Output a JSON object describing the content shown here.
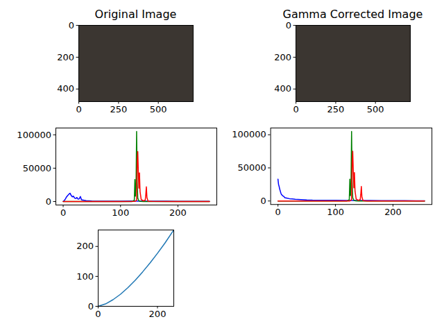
{
  "chart_data": [
    {
      "type": "image",
      "title": "Original Image",
      "xlim": [
        -0.5,
        719.5
      ],
      "ylim": [
        479.5,
        -0.5
      ],
      "xticks": [
        0,
        250,
        500
      ],
      "yticks": [
        0,
        200,
        400
      ]
    },
    {
      "type": "image",
      "title": "Gamma Corrected Image",
      "xlim": [
        -0.5,
        719.5
      ],
      "ylim": [
        479.5,
        -0.5
      ],
      "xticks": [
        0,
        250,
        500
      ],
      "yticks": [
        0,
        200,
        400
      ]
    },
    {
      "type": "line",
      "xlim": [
        -12.75,
        267.75
      ],
      "ylim": [
        -5250,
        110250
      ],
      "xticks": [
        0,
        100,
        200
      ],
      "yticks": [
        0,
        50000,
        100000
      ],
      "series": [
        {
          "color": "#0000ff",
          "x": [
            0,
            2,
            4,
            6,
            8,
            10,
            12,
            14,
            16,
            18,
            20,
            22,
            24,
            26,
            28,
            30,
            32,
            35,
            40,
            50,
            60,
            80,
            100,
            120,
            140,
            160,
            180,
            200,
            220,
            240,
            255
          ],
          "values": [
            200,
            1500,
            4000,
            7000,
            9000,
            11000,
            12500,
            9000,
            7000,
            8000,
            5000,
            4500,
            6000,
            3500,
            4000,
            7500,
            2500,
            2000,
            1200,
            800,
            600,
            500,
            600,
            700,
            600,
            500,
            400,
            300,
            300,
            200,
            100
          ]
        },
        {
          "color": "#008000",
          "x": [
            0,
            100,
            120,
            124,
            125,
            126,
            127,
            128,
            129,
            130,
            132,
            135,
            140,
            160,
            200,
            255
          ],
          "values": [
            0,
            0,
            50,
            2000,
            33000,
            8000,
            20000,
            105000,
            30000,
            5000,
            1000,
            200,
            0,
            0,
            0,
            0
          ]
        },
        {
          "color": "#ff0000",
          "x": [
            0,
            100,
            125,
            128,
            129,
            130,
            131,
            132,
            133,
            134,
            136,
            140,
            143,
            144,
            145,
            146,
            148,
            155,
            200,
            255
          ],
          "values": [
            0,
            0,
            100,
            2000,
            60000,
            75000,
            45000,
            20000,
            43000,
            15000,
            3000,
            1000,
            2000,
            10000,
            22000,
            6000,
            500,
            100,
            0,
            0
          ]
        }
      ]
    },
    {
      "type": "line",
      "xlim": [
        -12.75,
        267.75
      ],
      "ylim": [
        -5250,
        110250
      ],
      "xticks": [
        0,
        100,
        200
      ],
      "yticks": [
        0,
        50000,
        100000
      ],
      "series": [
        {
          "color": "#0000ff",
          "x": [
            0,
            1,
            2,
            3,
            4,
            5,
            6,
            8,
            10,
            12,
            15,
            20,
            25,
            30,
            40,
            50,
            60,
            80,
            100,
            120,
            140,
            160,
            180,
            200,
            220,
            240,
            255
          ],
          "values": [
            33000,
            25000,
            22000,
            18000,
            15000,
            12000,
            10000,
            8000,
            7000,
            5000,
            4500,
            3500,
            3000,
            2500,
            2000,
            1500,
            1200,
            1000,
            1100,
            900,
            800,
            700,
            600,
            500,
            400,
            300,
            200
          ]
        },
        {
          "color": "#008000",
          "x": [
            0,
            100,
            120,
            124,
            125,
            126,
            127,
            128,
            129,
            130,
            132,
            135,
            140,
            160,
            200,
            255
          ],
          "values": [
            0,
            0,
            50,
            2000,
            33000,
            8000,
            20000,
            105000,
            30000,
            5000,
            1000,
            200,
            0,
            0,
            0,
            0
          ]
        },
        {
          "color": "#ff0000",
          "x": [
            0,
            100,
            125,
            128,
            129,
            130,
            131,
            132,
            133,
            134,
            136,
            140,
            143,
            144,
            145,
            146,
            148,
            155,
            200,
            255
          ],
          "values": [
            0,
            0,
            100,
            2000,
            60000,
            75000,
            45000,
            20000,
            43000,
            15000,
            3000,
            1000,
            2000,
            10000,
            22000,
            6000,
            500,
            100,
            0,
            0
          ]
        }
      ]
    },
    {
      "type": "line",
      "xlim": [
        0,
        255
      ],
      "ylim": [
        0,
        255
      ],
      "xticks": [
        0,
        200
      ],
      "yticks": [
        0,
        100,
        200
      ],
      "series": [
        {
          "color": "#1f77b4",
          "x": [
            0,
            25,
            50,
            75,
            100,
            125,
            150,
            175,
            200,
            225,
            255
          ],
          "values": [
            0,
            8,
            22,
            40,
            62,
            87,
            115,
            145,
            177,
            211,
            255
          ]
        }
      ]
    }
  ]
}
